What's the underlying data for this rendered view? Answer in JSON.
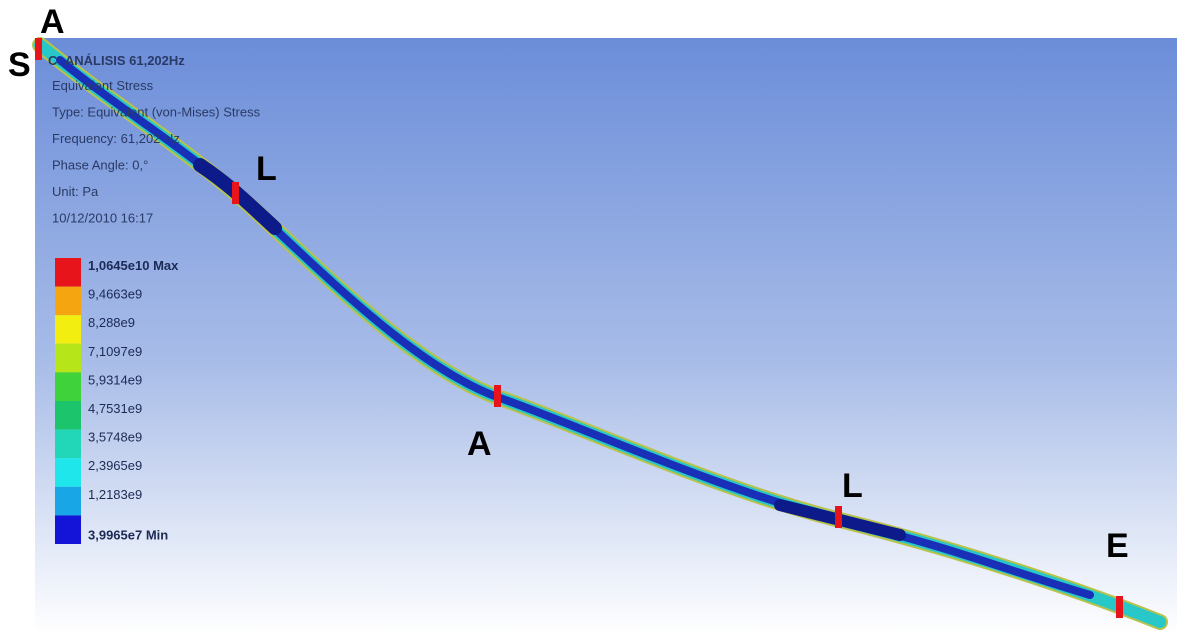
{
  "info": {
    "title": "C: ANÁLISIS 61,202Hz",
    "lines": [
      "Equivalent Stress",
      "Type: Equivalent (von-Mises) Stress",
      "Frequency: 61,202 Hz",
      "Phase Angle: 0,°",
      "Unit: Pa",
      "10/12/2010 16:17"
    ]
  },
  "legend": [
    {
      "label": "1,0645e10 Max",
      "color": "#e8141c"
    },
    {
      "label": "9,4663e9",
      "color": "#f5a50f"
    },
    {
      "label": "8,288e9",
      "color": "#f2ee10"
    },
    {
      "label": "7,1097e9",
      "color": "#b6e51a"
    },
    {
      "label": "5,9314e9",
      "color": "#3fd23a"
    },
    {
      "label": "4,7531e9",
      "color": "#1cc46b"
    },
    {
      "label": "3,5748e9",
      "color": "#22d6b8"
    },
    {
      "label": "2,3965e9",
      "color": "#1ee6ea"
    },
    {
      "label": "1,2183e9",
      "color": "#18a6e6"
    },
    {
      "label": "3,9965e7 Min",
      "color": "#1414d8"
    }
  ],
  "markers": [
    {
      "label": "A"
    },
    {
      "label": "S"
    },
    {
      "label": "L"
    },
    {
      "label": "A"
    },
    {
      "label": "L"
    },
    {
      "label": "E"
    }
  ]
}
